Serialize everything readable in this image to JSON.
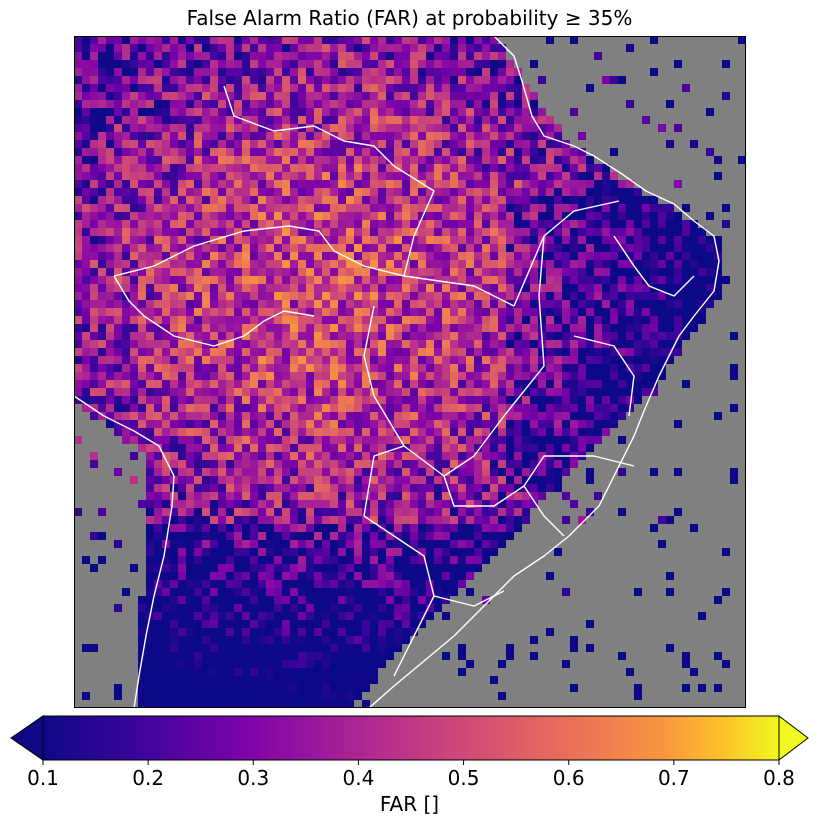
{
  "chart_data": {
    "type": "heatmap",
    "title": "False Alarm Ratio (FAR) at probability ≥ 35%",
    "colorbar": {
      "label": "FAR []",
      "min": 0.1,
      "max": 0.8,
      "ticks": [
        "0.1",
        "0.2",
        "0.3",
        "0.4",
        "0.5",
        "0.6",
        "0.7",
        "0.8"
      ],
      "tick_values": [
        0.1,
        0.2,
        0.3,
        0.4,
        0.5,
        0.6,
        0.7,
        0.8
      ],
      "extend": "both",
      "colormap": "plasma"
    },
    "missing_color": "#808080",
    "boundary_color": "#ffffff"
  }
}
